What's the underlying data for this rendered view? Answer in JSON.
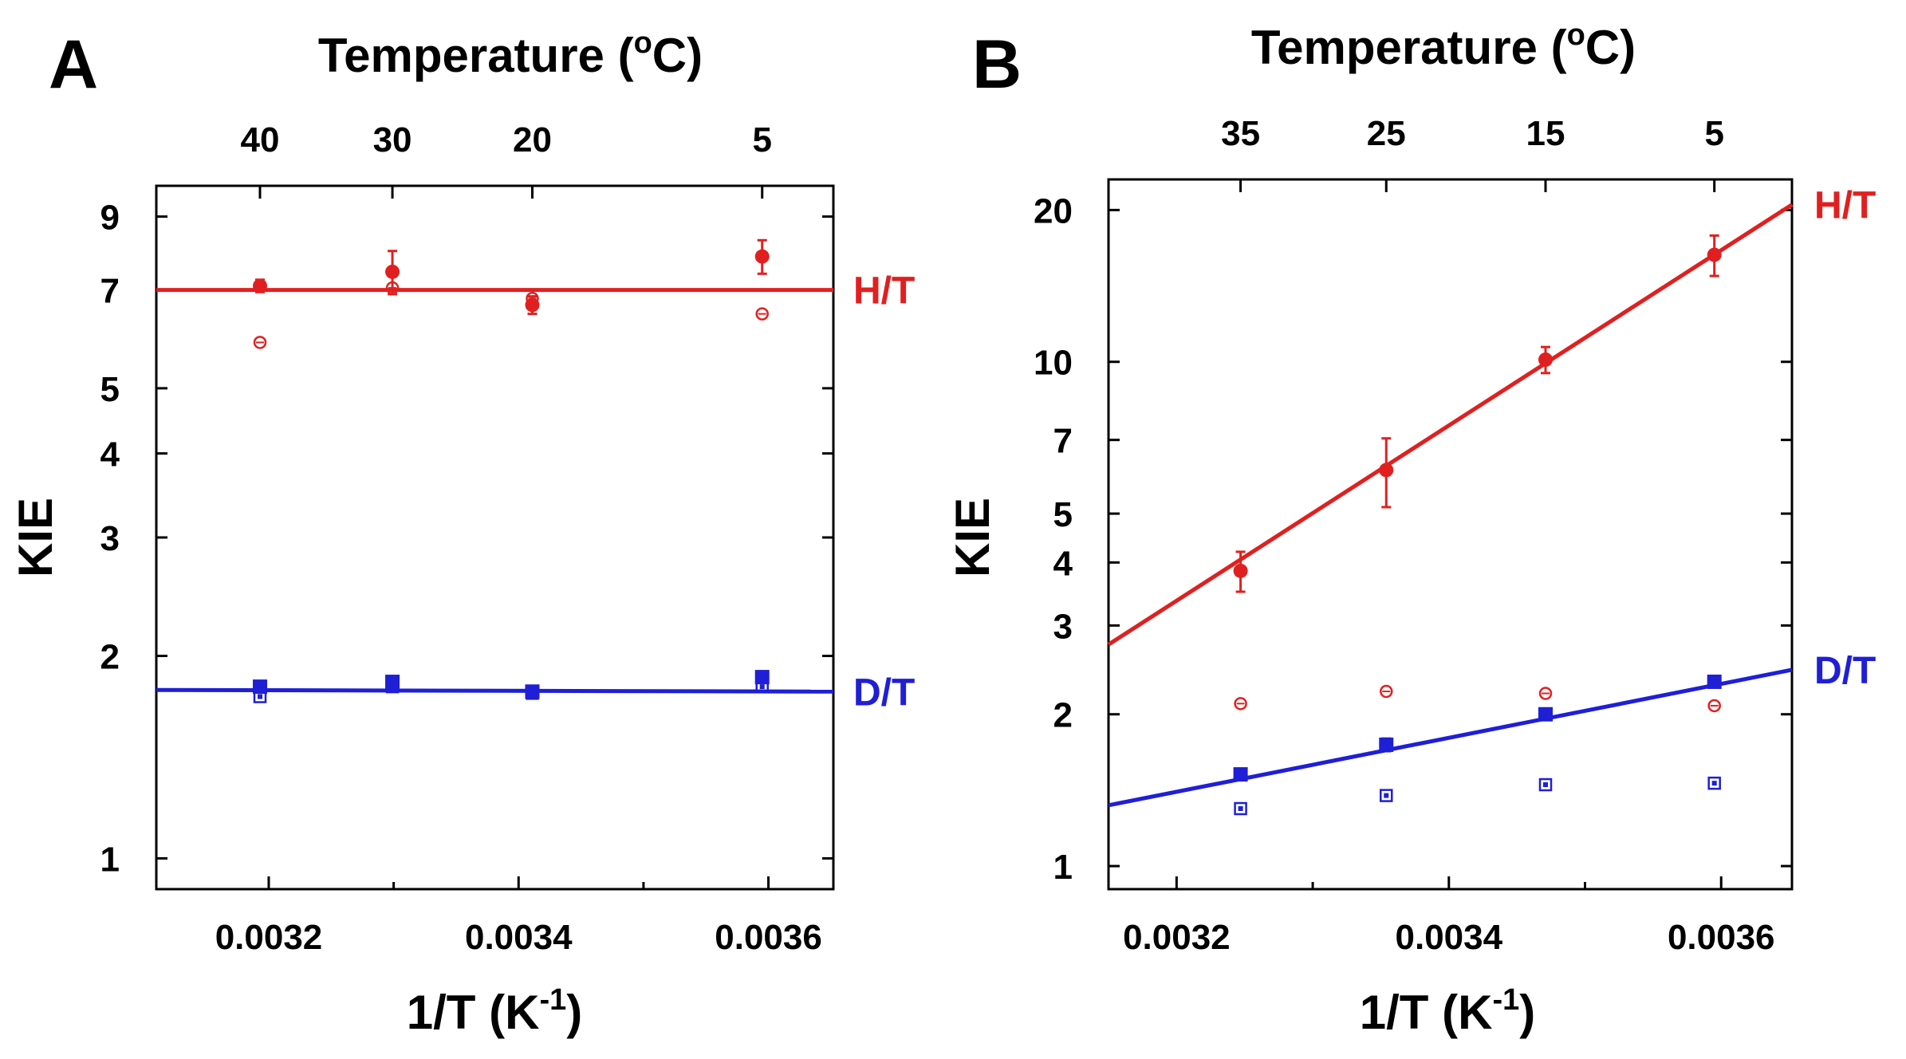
{
  "colors": {
    "ht": "#e02020",
    "dt": "#1f1fd6",
    "axis": "#000000"
  },
  "chart_data": [
    {
      "panel": "A",
      "type": "scatter",
      "title_top": {
        "prefix": "Temperature (",
        "sup": "o",
        "suffix": "C)"
      },
      "xlabel": {
        "prefix": "1/T (K",
        "sup": "-1",
        "suffix": ")"
      },
      "ylabel": "KIE",
      "yscale": "log",
      "xlim": [
        0.00311,
        0.003652
      ],
      "ylim": [
        0.9,
        10.0
      ],
      "xticks": [
        0.0032,
        0.0034,
        0.0036
      ],
      "xtick_labels": [
        "0.0032",
        "0.0034",
        "0.0036"
      ],
      "xminor": [
        0.0033,
        0.0035
      ],
      "yticks": [
        1,
        2,
        3,
        4,
        5,
        7,
        9
      ],
      "ytick_labels": [
        "1",
        "2",
        "3",
        "4",
        "5",
        "7",
        "9"
      ],
      "top_ticks": [
        0.003193,
        0.003299,
        0.003411,
        0.003595
      ],
      "top_tick_labels": [
        "40",
        "30",
        "20",
        "5"
      ],
      "series": [
        {
          "name": "H/T",
          "label": "H/T",
          "color_key": "ht",
          "marker": "circle",
          "fit": [
            [
              0.00311,
              7.0
            ],
            [
              0.003652,
              7.0
            ]
          ],
          "points_filled": [
            {
              "x": 0.003193,
              "y": 7.1,
              "err": 0.15
            },
            {
              "x": 0.003299,
              "y": 7.45,
              "err": 0.55
            },
            {
              "x": 0.003411,
              "y": 6.65,
              "err": 0.2
            },
            {
              "x": 0.003595,
              "y": 7.85,
              "err": 0.45
            }
          ],
          "points_open": [
            {
              "x": 0.003193,
              "y": 5.85
            },
            {
              "x": 0.003299,
              "y": 7.05
            },
            {
              "x": 0.003411,
              "y": 6.8
            },
            {
              "x": 0.003595,
              "y": 6.45
            }
          ]
        },
        {
          "name": "D/T",
          "label": "D/T",
          "color_key": "dt",
          "marker": "square",
          "fit": [
            [
              0.00311,
              1.78
            ],
            [
              0.003652,
              1.77
            ]
          ],
          "points_filled": [
            {
              "x": 0.003193,
              "y": 1.8,
              "err": 0.03
            },
            {
              "x": 0.003299,
              "y": 1.83,
              "err": 0.03
            },
            {
              "x": 0.003411,
              "y": 1.77,
              "err": 0.02
            },
            {
              "x": 0.003595,
              "y": 1.86,
              "err": 0.03
            }
          ],
          "points_open": [
            {
              "x": 0.003193,
              "y": 1.74
            },
            {
              "x": 0.003299,
              "y": 1.8
            },
            {
              "x": 0.003411,
              "y": 1.76
            },
            {
              "x": 0.003595,
              "y": 1.8
            }
          ]
        }
      ]
    },
    {
      "panel": "B",
      "type": "scatter",
      "title_top": {
        "prefix": "Temperature (",
        "sup": "o",
        "suffix": "C)"
      },
      "xlabel": {
        "prefix": "1/T (K",
        "sup": "-1",
        "suffix": ")"
      },
      "ylabel": "KIE",
      "yscale": "log",
      "xlim": [
        0.00315,
        0.003652
      ],
      "ylim": [
        0.9,
        23.0
      ],
      "xticks": [
        0.0032,
        0.0034,
        0.0036
      ],
      "xtick_labels": [
        "0.0032",
        "0.0034",
        "0.0036"
      ],
      "xminor": [
        0.0033,
        0.0035
      ],
      "yticks": [
        1,
        2,
        3,
        4,
        5,
        7,
        10,
        20
      ],
      "ytick_labels": [
        "1",
        "2",
        "3",
        "4",
        "5",
        "7",
        "10",
        "20"
      ],
      "top_ticks": [
        0.003247,
        0.003354,
        0.003471,
        0.003595
      ],
      "top_tick_labels": [
        "35",
        "25",
        "15",
        "5"
      ],
      "series": [
        {
          "name": "H/T",
          "label": "H/T",
          "color_key": "ht",
          "marker": "circle",
          "fit": [
            [
              0.00315,
              2.75
            ],
            [
              0.003652,
              20.5
            ]
          ],
          "points_filled": [
            {
              "x": 0.003247,
              "y": 3.85,
              "err": 0.35
            },
            {
              "x": 0.003354,
              "y": 6.1,
              "err": 0.95
            },
            {
              "x": 0.003471,
              "y": 10.1,
              "err": 0.6
            },
            {
              "x": 0.003595,
              "y": 16.3,
              "err": 1.5
            }
          ],
          "points_open": [
            {
              "x": 0.003247,
              "y": 2.1
            },
            {
              "x": 0.003354,
              "y": 2.22
            },
            {
              "x": 0.003471,
              "y": 2.2
            },
            {
              "x": 0.003595,
              "y": 2.08
            }
          ]
        },
        {
          "name": "D/T",
          "label": "D/T",
          "color_key": "dt",
          "marker": "square",
          "fit": [
            [
              0.00315,
              1.32
            ],
            [
              0.003652,
              2.45
            ]
          ],
          "points_filled": [
            {
              "x": 0.003247,
              "y": 1.52,
              "err": 0.03
            },
            {
              "x": 0.003354,
              "y": 1.74,
              "err": 0.05
            },
            {
              "x": 0.003471,
              "y": 2.0,
              "err": 0.04
            },
            {
              "x": 0.003595,
              "y": 2.32,
              "err": 0.04
            }
          ],
          "points_open": [
            {
              "x": 0.003247,
              "y": 1.3
            },
            {
              "x": 0.003354,
              "y": 1.38
            },
            {
              "x": 0.003471,
              "y": 1.45
            },
            {
              "x": 0.003595,
              "y": 1.46
            }
          ]
        }
      ]
    }
  ]
}
